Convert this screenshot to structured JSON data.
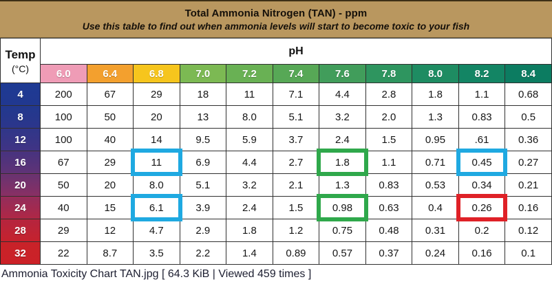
{
  "banner": {
    "title": "Total Ammonia Nitrogen (TAN) - ppm",
    "subtitle": "Use this table to find out when ammonia levels will start to become toxic to your fish",
    "background": "#b9975f"
  },
  "chart_data": {
    "type": "table",
    "title": "Total Ammonia Nitrogen (TAN) - ppm",
    "corner_header": {
      "line1": "Temp",
      "line2": "(°C)"
    },
    "column_group_label": "pH",
    "columns": [
      {
        "label": "6.0",
        "color": "#ef9cb6"
      },
      {
        "label": "6.4",
        "color": "#f3a02e"
      },
      {
        "label": "6.8",
        "color": "#f6c51d"
      },
      {
        "label": "7.0",
        "color": "#7cb953"
      },
      {
        "label": "7.2",
        "color": "#69b154"
      },
      {
        "label": "7.4",
        "color": "#57a856"
      },
      {
        "label": "7.6",
        "color": "#419d5b"
      },
      {
        "label": "7.8",
        "color": "#2e955f"
      },
      {
        "label": "8.0",
        "color": "#1e8c62"
      },
      {
        "label": "8.2",
        "color": "#138564"
      },
      {
        "label": "8.4",
        "color": "#0c7c61"
      }
    ],
    "rows": [
      {
        "temp": "4",
        "color_top": "#1e3a93",
        "color_bottom": "#213890",
        "values": [
          "200",
          "67",
          "29",
          "18",
          "11",
          "7.1",
          "4.4",
          "2.8",
          "1.8",
          "1.1",
          "0.68"
        ]
      },
      {
        "temp": "8",
        "color_top": "#22388e",
        "color_bottom": "#2c368b",
        "values": [
          "100",
          "50",
          "20",
          "13",
          "8.0",
          "5.1",
          "3.2",
          "2.0",
          "1.3",
          "0.83",
          "0.5"
        ]
      },
      {
        "temp": "12",
        "color_top": "#303689",
        "color_bottom": "#413484",
        "values": [
          "100",
          "40",
          "14",
          "9.5",
          "5.9",
          "3.7",
          "2.4",
          "1.5",
          "0.95",
          ".61",
          "0.36"
        ]
      },
      {
        "temp": "16",
        "color_top": "#47337f",
        "color_bottom": "#603376",
        "values": [
          "67",
          "29",
          "11",
          "6.9",
          "4.4",
          "2.7",
          "1.8",
          "1.1",
          "0.71",
          "0.45",
          "0.27"
        ]
      },
      {
        "temp": "20",
        "color_top": "#683371",
        "color_bottom": "#8a2f63",
        "values": [
          "50",
          "20",
          "8.0",
          "5.1",
          "3.2",
          "2.1",
          "1.3",
          "0.83",
          "0.53",
          "0.34",
          "0.21"
        ]
      },
      {
        "temp": "24",
        "color_top": "#932d5b",
        "color_bottom": "#b02745",
        "values": [
          "40",
          "15",
          "6.1",
          "3.9",
          "2.4",
          "1.5",
          "0.98",
          "0.63",
          "0.4",
          "0.26",
          "0.16"
        ]
      },
      {
        "temp": "28",
        "color_top": "#b5253e",
        "color_bottom": "#c6222d",
        "values": [
          "29",
          "12",
          "4.7",
          "2.9",
          "1.8",
          "1.2",
          "0.75",
          "0.48",
          "0.31",
          "0.2",
          "0.12"
        ]
      },
      {
        "temp": "32",
        "color_top": "#c82229",
        "color_bottom": "#cc2127",
        "values": [
          "22",
          "8.7",
          "3.5",
          "2.2",
          "1.4",
          "0.89",
          "0.57",
          "0.37",
          "0.24",
          "0.16",
          "0.1"
        ]
      }
    ],
    "highlight_colors": {
      "blue": "#1fa9e1",
      "green": "#2fa84b",
      "red": "#df2127"
    },
    "highlights": [
      {
        "row": 3,
        "col": 2,
        "color": "blue"
      },
      {
        "row": 3,
        "col": 6,
        "color": "green"
      },
      {
        "row": 3,
        "col": 9,
        "color": "blue"
      },
      {
        "row": 5,
        "col": 2,
        "color": "blue"
      },
      {
        "row": 5,
        "col": 6,
        "color": "green"
      },
      {
        "row": 5,
        "col": 9,
        "color": "red"
      }
    ]
  },
  "caption": "Ammonia Toxicity Chart TAN.jpg [ 64.3 KiB | Viewed 459 times ]"
}
